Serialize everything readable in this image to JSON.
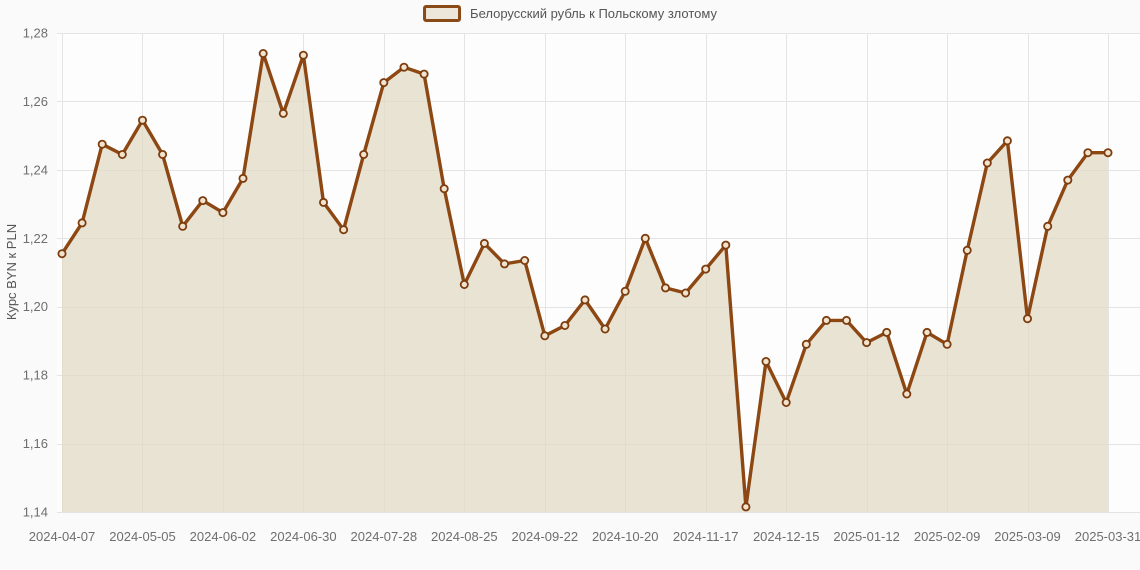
{
  "legend": {
    "series_label": "Белорусский рубль к Польскому злотому"
  },
  "chart_data": {
    "type": "area",
    "title": "",
    "legend_entries": [
      "Белорусский рубль к Польскому злотому"
    ],
    "legend_position": "top-center",
    "ylabel": "Курс BYN к PLN",
    "xlabel": "",
    "grid": true,
    "ylim": [
      1.14,
      1.28
    ],
    "y_ticks": [
      1.28,
      1.26,
      1.24,
      1.22,
      1.2,
      1.18,
      1.16,
      1.14
    ],
    "y_tick_labels": [
      "1,28",
      "1,26",
      "1,24",
      "1,22",
      "1,20",
      "1,18",
      "1,16",
      "1,14"
    ],
    "x": [
      "2024-04-07",
      "2024-04-14",
      "2024-04-21",
      "2024-04-28",
      "2024-05-05",
      "2024-05-12",
      "2024-05-19",
      "2024-05-26",
      "2024-06-02",
      "2024-06-09",
      "2024-06-16",
      "2024-06-23",
      "2024-06-30",
      "2024-07-07",
      "2024-07-14",
      "2024-07-21",
      "2024-07-28",
      "2024-08-04",
      "2024-08-11",
      "2024-08-18",
      "2024-08-25",
      "2024-09-01",
      "2024-09-08",
      "2024-09-15",
      "2024-09-22",
      "2024-09-29",
      "2024-10-06",
      "2024-10-13",
      "2024-10-20",
      "2024-10-27",
      "2024-11-03",
      "2024-11-10",
      "2024-11-17",
      "2024-11-24",
      "2024-12-01",
      "2024-12-08",
      "2024-12-15",
      "2024-12-22",
      "2024-12-29",
      "2025-01-05",
      "2025-01-12",
      "2025-01-19",
      "2025-01-26",
      "2025-02-02",
      "2025-02-09",
      "2025-02-16",
      "2025-02-23",
      "2025-03-02",
      "2025-03-09",
      "2025-03-16",
      "2025-03-23",
      "2025-03-30",
      "2025-03-31"
    ],
    "values": [
      1.2155,
      1.2245,
      1.2475,
      1.2445,
      1.2545,
      1.2445,
      1.2235,
      1.231,
      1.2275,
      1.2375,
      1.274,
      1.2565,
      1.2735,
      1.2305,
      1.2225,
      1.2445,
      1.2655,
      1.27,
      1.268,
      1.2345,
      1.2065,
      1.2185,
      1.2125,
      1.2135,
      1.1915,
      1.1945,
      1.202,
      1.1935,
      1.2045,
      1.22,
      1.2055,
      1.204,
      1.211,
      1.218,
      1.1415,
      1.184,
      1.172,
      1.189,
      1.196,
      1.196,
      1.1895,
      1.1925,
      1.1745,
      1.1925,
      1.189,
      1.2165,
      1.242,
      1.2485,
      1.1965,
      1.2235,
      1.237,
      1.245,
      1.245
    ],
    "x_tick_indices": [
      0,
      4,
      8,
      12,
      16,
      20,
      24,
      28,
      32,
      36,
      40,
      44,
      48,
      52
    ],
    "x_tick_labels": [
      "2024-04-07",
      "2024-05-05",
      "2024-06-02",
      "2024-06-30",
      "2024-07-28",
      "2024-08-25",
      "2024-09-22",
      "2024-10-20",
      "2024-11-17",
      "2024-12-15",
      "2025-01-12",
      "2025-02-09",
      "2025-03-09",
      "2025-03-31"
    ],
    "colors": {
      "line": "#8d4712",
      "marker_stroke": "#7c3c0e",
      "marker_fill": "#f1e3cd",
      "area": "#e2dac5",
      "grid": "#e4e4e4",
      "axis_text": "#6e6e6e",
      "legend_text": "#555555",
      "background": "#fafafa",
      "plot_background": "#fdfdfd"
    }
  }
}
